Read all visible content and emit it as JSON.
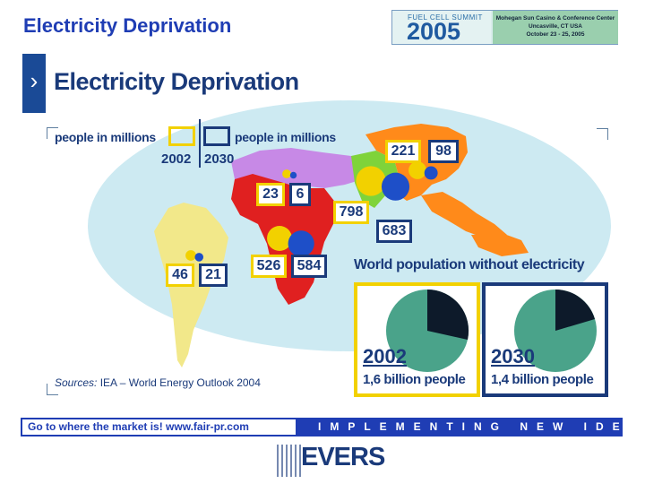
{
  "slide": {
    "title": "Electricity Deprivation"
  },
  "event": {
    "small_label": "FUEL CELL SUMMIT",
    "year": "2005",
    "venue": "Mohegan Sun Casino & Conference Center",
    "location": "Uncasville, CT USA",
    "dates": "October 23 - 25, 2005"
  },
  "panel": {
    "title": "Electricity Deprivation",
    "legend": {
      "label_2002": "people in millions",
      "label_2030": "people in millions",
      "year_2002": "2002",
      "year_2030": "2030"
    },
    "regions": [
      {
        "region": "South America",
        "v2002": "46",
        "v2030": "21"
      },
      {
        "region": "North Africa / Middle East",
        "v2002": "23",
        "v2030": "6"
      },
      {
        "region": "Sub-Saharan Africa",
        "v2002": "526",
        "v2030": "584"
      },
      {
        "region": "South Asia",
        "v2002": "798",
        "v2030": "683"
      },
      {
        "region": "East Asia",
        "v2002": "221",
        "v2030": "98"
      }
    ],
    "world": {
      "title": "World population without electricity",
      "y2002": {
        "year": "2002",
        "caption": "1,6 billion people"
      },
      "y2030": {
        "year": "2030",
        "caption": "1,4 billion people"
      }
    },
    "sources_label": "Sources:",
    "sources_text": " IEA – World Energy Outlook 2004"
  },
  "footer": {
    "left": "Go to where the market is!   www.fair-pr.com",
    "right": "IMPLEMENTING NEW IDEAS"
  },
  "logo": {
    "text": "EVERS"
  },
  "colors": {
    "brand_blue": "#1f3db4",
    "navy": "#1a3a7a",
    "yellow_2002": "#f2d100",
    "blue_2030": "#1a3a7a",
    "ocean": "#cdeaf2"
  }
}
